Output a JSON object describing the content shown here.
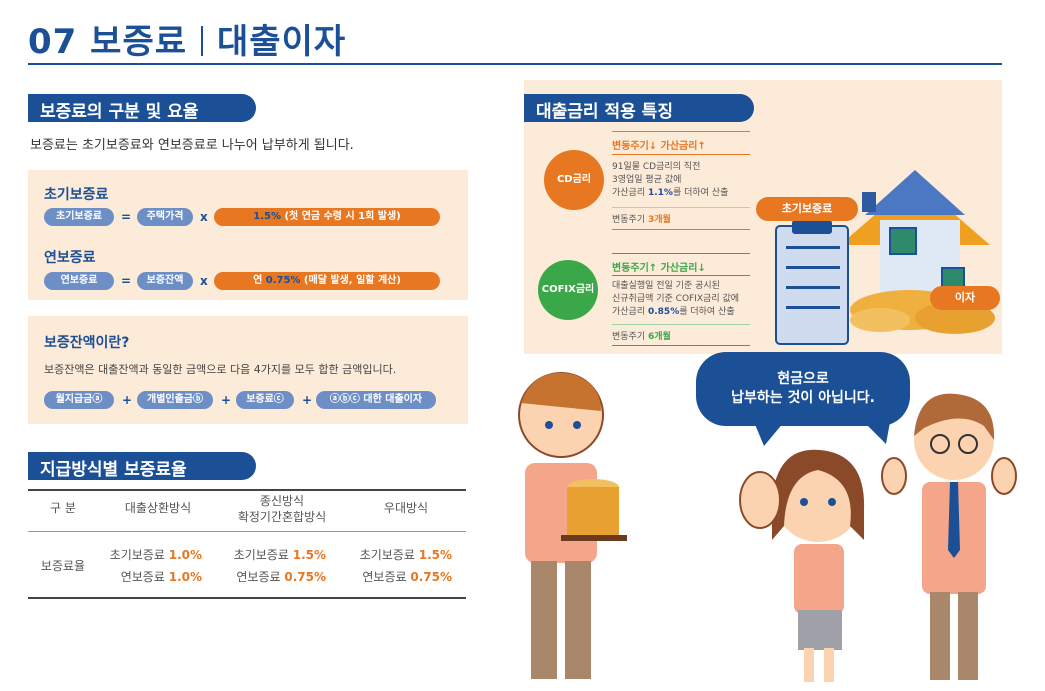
{
  "title": {
    "number": "07",
    "left": "보증료",
    "right": "대출이자"
  },
  "section1": {
    "heading": "보증료의 구분 및 요율",
    "intro": "보증료는 초기보증료와 연보증료로 나누어 납부하게 됩니다.",
    "initial": {
      "title": "초기보증료",
      "pill1": "초기보증료",
      "eq": "=",
      "pill2": "주택가격",
      "times": "x",
      "rate": "1.5%",
      "rate_note": " (첫 연금 수령 시 1회 발생)"
    },
    "annual": {
      "title": "연보증료",
      "pill1": "연보증료",
      "eq": "=",
      "pill2": "보증잔액",
      "times": "x",
      "rate_prefix": "연 ",
      "rate": "0.75%",
      "rate_note": " (매달 발생, 일할 계산)"
    }
  },
  "balance": {
    "title": "보증잔액이란?",
    "desc": "보증잔액은 대출잔액과 동일한 금액으로 다음 4가지를 모두 합한 금액입니다.",
    "items": [
      "월지급금ⓐ",
      "개별인출금ⓑ",
      "보증료ⓒ",
      "ⓐⓑⓒ 대한 대출이자"
    ],
    "plus": "+"
  },
  "section2": {
    "heading": "지급방식별 보증료율",
    "headers": [
      "구 분",
      "대출상환방식",
      "종신방식",
      "확정기간혼합방식",
      "우대방식"
    ],
    "row_label": "보증료율",
    "initial_label": "초기보증료",
    "annual_label": "연보증료",
    "cols": [
      {
        "initial": "1.0%",
        "annual": "1.0%"
      },
      {
        "initial": "1.5%",
        "annual": "0.75%"
      },
      {
        "initial": "1.5%",
        "annual": "0.75%"
      }
    ]
  },
  "rates": {
    "heading": "대출금리 적용 특징",
    "cd": {
      "circle": "CD금리",
      "head": "변동주기↓ 가산금리↑",
      "line1": "91일물 CD금리의 직전",
      "line2": "3영업일 평균 값에",
      "line3_pre": "가산금리 ",
      "line3_val": "1.1%",
      "line3_post": "를 더하여 산출",
      "foot_pre": "변동주기 ",
      "foot_val": "3개월"
    },
    "cofix": {
      "circle": "COFIX금리",
      "head": "변동주기↑ 가산금리↓",
      "line1": "대출실행일 전일 기준 공시된",
      "line2": "신규취급액 기준 COFIX금리 값에",
      "line3_pre": "가산금리 ",
      "line3_val": "0.85%",
      "line3_post": "를 더하여 산출",
      "foot_pre": "변동주기 ",
      "foot_val": "6개월"
    },
    "tag_guarantee": "초기보증료",
    "tag_interest": "이자"
  },
  "bubble": {
    "line1": "현금으로",
    "line2": "납부하는 것이 아닙니다."
  },
  "colors": {
    "primary": "#1b4f96",
    "accent": "#e87722",
    "panel": "#fdebd9",
    "pill_blue": "#6d8fc5"
  }
}
